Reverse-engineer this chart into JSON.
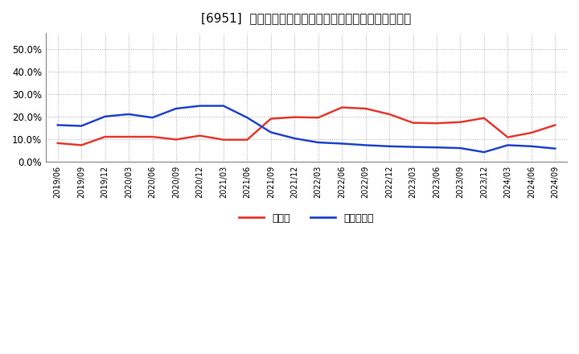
{
  "title": "[6951]  現顔金、有利子負債の総資産に対する比率の推移",
  "x_labels": [
    "2019/06",
    "2019/09",
    "2019/12",
    "2020/03",
    "2020/06",
    "2020/09",
    "2020/12",
    "2021/03",
    "2021/06",
    "2021/09",
    "2021/12",
    "2022/03",
    "2022/06",
    "2022/09",
    "2022/12",
    "2023/03",
    "2023/06",
    "2023/09",
    "2023/12",
    "2024/03",
    "2024/06",
    "2024/09"
  ],
  "cash_values": [
    0.082,
    0.073,
    0.11,
    0.11,
    0.11,
    0.098,
    0.115,
    0.097,
    0.097,
    0.19,
    0.197,
    0.195,
    0.24,
    0.235,
    0.21,
    0.172,
    0.17,
    0.175,
    0.193,
    0.108,
    0.128,
    0.162
  ],
  "debt_values": [
    0.162,
    0.158,
    0.2,
    0.21,
    0.195,
    0.235,
    0.247,
    0.247,
    0.195,
    0.13,
    0.103,
    0.085,
    0.08,
    0.073,
    0.068,
    0.065,
    0.063,
    0.06,
    0.042,
    0.073,
    0.068,
    0.058
  ],
  "cash_color": "#e8392e",
  "debt_color": "#2244cc",
  "background_color": "#ffffff",
  "plot_bg_color": "#ffffff",
  "grid_color": "#aaaaaa",
  "legend_cash": "現顔金",
  "legend_debt": "有利子負債",
  "ylim": [
    0.0,
    0.57
  ],
  "yticks": [
    0.0,
    0.1,
    0.2,
    0.3,
    0.4,
    0.5
  ]
}
